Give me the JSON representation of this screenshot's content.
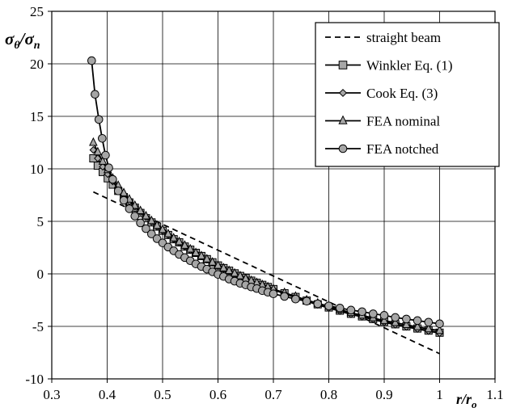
{
  "chart_data": {
    "type": "line",
    "xlabel": {
      "main": "r/r",
      "sub": "o"
    },
    "ylabel": {
      "main": "σ",
      "sub1": "θ",
      "sep": "/σ",
      "sub2": "n"
    },
    "xlim": [
      0.3,
      1.1
    ],
    "ylim": [
      -10,
      25
    ],
    "x_ticks": [
      "0.3",
      "0.4",
      "0.5",
      "0.6",
      "0.7",
      "0.8",
      "0.9",
      "1",
      "1.1"
    ],
    "y_ticks": [
      "25",
      "20",
      "15",
      "10",
      "5",
      "0",
      "-5",
      "-10"
    ],
    "grid": true,
    "legend_position": "top-right",
    "series": [
      {
        "name": "straight beam",
        "style": "dashed",
        "marker": "none",
        "x": [
          0.375,
          1.0
        ],
        "y": [
          7.8,
          -7.6
        ]
      },
      {
        "name": "Winkler Eq. (1)",
        "style": "solid",
        "marker": "square",
        "x": [
          0.375,
          0.383,
          0.392,
          0.401,
          0.41,
          0.42,
          0.43,
          0.44,
          0.45,
          0.46,
          0.47,
          0.48,
          0.49,
          0.5,
          0.51,
          0.52,
          0.53,
          0.54,
          0.55,
          0.56,
          0.57,
          0.58,
          0.59,
          0.6,
          0.61,
          0.62,
          0.63,
          0.64,
          0.65,
          0.66,
          0.67,
          0.68,
          0.69,
          0.7,
          0.72,
          0.74,
          0.76,
          0.78,
          0.8,
          0.82,
          0.84,
          0.86,
          0.88,
          0.9,
          0.92,
          0.94,
          0.96,
          0.98,
          1.0
        ],
        "y": [
          11.0,
          10.3,
          9.7,
          9.1,
          8.5,
          7.9,
          7.3,
          6.8,
          6.3,
          5.8,
          5.3,
          4.9,
          4.5,
          4.1,
          3.7,
          3.3,
          3.0,
          2.6,
          2.3,
          2.0,
          1.7,
          1.4,
          1.1,
          0.8,
          0.55,
          0.3,
          0.05,
          -0.2,
          -0.4,
          -0.65,
          -0.85,
          -1.05,
          -1.25,
          -1.45,
          -1.85,
          -2.2,
          -2.55,
          -2.9,
          -3.2,
          -3.5,
          -3.8,
          -4.05,
          -4.3,
          -4.55,
          -4.8,
          -5.0,
          -5.2,
          -5.4,
          -5.6
        ]
      },
      {
        "name": "Cook Eq. (3)",
        "style": "solid",
        "marker": "diamond",
        "x": [
          0.375,
          0.383,
          0.392,
          0.401,
          0.41,
          0.42,
          0.43,
          0.44,
          0.45,
          0.46,
          0.47,
          0.48,
          0.49,
          0.5,
          0.51,
          0.52,
          0.53,
          0.54,
          0.55,
          0.56,
          0.57,
          0.58,
          0.59,
          0.6,
          0.61,
          0.62,
          0.63,
          0.64,
          0.65,
          0.66,
          0.67,
          0.68,
          0.69,
          0.7,
          0.72,
          0.74,
          0.76,
          0.78,
          0.8,
          0.82,
          0.84,
          0.86,
          0.88,
          0.9,
          0.92,
          0.94,
          0.96,
          0.98,
          1.0
        ],
        "y": [
          11.8,
          11.0,
          10.2,
          9.5,
          8.8,
          8.1,
          7.5,
          6.9,
          6.4,
          5.9,
          5.4,
          4.95,
          4.5,
          4.1,
          3.7,
          3.3,
          2.95,
          2.6,
          2.25,
          1.95,
          1.65,
          1.35,
          1.05,
          0.75,
          0.5,
          0.25,
          0.0,
          -0.25,
          -0.45,
          -0.7,
          -0.9,
          -1.1,
          -1.3,
          -1.5,
          -1.9,
          -2.25,
          -2.6,
          -2.95,
          -3.25,
          -3.55,
          -3.85,
          -4.1,
          -4.35,
          -4.6,
          -4.85,
          -5.05,
          -5.25,
          -5.45,
          -5.65
        ]
      },
      {
        "name": "FEA nominal",
        "style": "solid",
        "marker": "triangle",
        "x": [
          0.375,
          0.383,
          0.392,
          0.401,
          0.41,
          0.42,
          0.43,
          0.44,
          0.45,
          0.46,
          0.47,
          0.48,
          0.49,
          0.5,
          0.51,
          0.52,
          0.53,
          0.54,
          0.55,
          0.56,
          0.57,
          0.58,
          0.59,
          0.6,
          0.61,
          0.62,
          0.63,
          0.64,
          0.65,
          0.66,
          0.67,
          0.68,
          0.69,
          0.7,
          0.72,
          0.74,
          0.76,
          0.78,
          0.8,
          0.82,
          0.84,
          0.86,
          0.88,
          0.9,
          0.92,
          0.94,
          0.96,
          0.98,
          1.0
        ],
        "y": [
          12.5,
          11.6,
          10.7,
          9.9,
          9.1,
          8.4,
          7.7,
          7.1,
          6.5,
          6.0,
          5.5,
          5.05,
          4.6,
          4.2,
          3.8,
          3.4,
          3.05,
          2.7,
          2.35,
          2.0,
          1.7,
          1.4,
          1.1,
          0.8,
          0.55,
          0.3,
          0.05,
          -0.2,
          -0.45,
          -0.65,
          -0.85,
          -1.05,
          -1.25,
          -1.45,
          -1.8,
          -2.15,
          -2.5,
          -2.8,
          -3.1,
          -3.4,
          -3.7,
          -3.95,
          -4.2,
          -4.45,
          -4.65,
          -4.85,
          -5.05,
          -5.25,
          -5.4
        ]
      },
      {
        "name": "FEA notched",
        "style": "solid",
        "marker": "circle",
        "x": [
          0.372,
          0.378,
          0.385,
          0.391,
          0.397,
          0.403,
          0.41,
          0.42,
          0.43,
          0.44,
          0.45,
          0.46,
          0.47,
          0.48,
          0.49,
          0.5,
          0.51,
          0.52,
          0.53,
          0.54,
          0.55,
          0.56,
          0.57,
          0.58,
          0.59,
          0.6,
          0.61,
          0.62,
          0.63,
          0.64,
          0.65,
          0.66,
          0.67,
          0.68,
          0.69,
          0.7,
          0.72,
          0.74,
          0.76,
          0.78,
          0.8,
          0.82,
          0.84,
          0.86,
          0.88,
          0.9,
          0.92,
          0.94,
          0.96,
          0.98,
          1.0
        ],
        "y": [
          20.3,
          17.1,
          14.7,
          12.9,
          11.3,
          10.1,
          9.0,
          7.9,
          7.0,
          6.2,
          5.5,
          4.85,
          4.3,
          3.8,
          3.35,
          2.95,
          2.55,
          2.2,
          1.85,
          1.55,
          1.25,
          0.95,
          0.7,
          0.45,
          0.2,
          -0.05,
          -0.25,
          -0.5,
          -0.7,
          -0.9,
          -1.05,
          -1.25,
          -1.4,
          -1.6,
          -1.75,
          -1.9,
          -2.15,
          -2.4,
          -2.6,
          -2.85,
          -3.05,
          -3.25,
          -3.45,
          -3.6,
          -3.8,
          -3.95,
          -4.15,
          -4.3,
          -4.45,
          -4.6,
          -4.75
        ]
      }
    ]
  }
}
